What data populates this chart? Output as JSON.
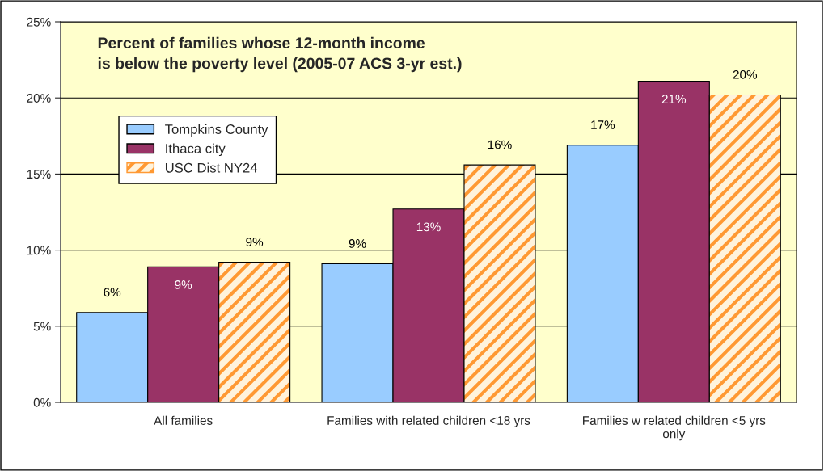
{
  "chart_data": {
    "type": "bar",
    "title": "Percent of families whose 12-month income\nis below the poverty level (2005-07 ACS 3-yr est.)",
    "categories": [
      "All families",
      "Families with related children <18 yrs",
      "Families w related children <5 yrs\nonly"
    ],
    "series": [
      {
        "name": "Tompkins County",
        "color": "#99ccff",
        "values": [
          5.9,
          9.1,
          16.9
        ],
        "value_labels": [
          "6%",
          "9%",
          "17%"
        ]
      },
      {
        "name": "Ithaca city",
        "color": "#993366",
        "values": [
          8.9,
          12.7,
          21.1
        ],
        "value_labels": [
          "9%",
          "13%",
          "21%"
        ]
      },
      {
        "name": "USC Dist NY24",
        "color": "#ff9933",
        "values": [
          9.2,
          15.6,
          20.2
        ],
        "value_labels": [
          "9%",
          "16%",
          "20%"
        ]
      }
    ],
    "ylim": [
      0,
      25
    ],
    "yticks": [
      {
        "value": 0,
        "label": "0%"
      },
      {
        "value": 5,
        "label": "5%"
      },
      {
        "value": 10,
        "label": "10%"
      },
      {
        "value": 15,
        "label": "15%"
      },
      {
        "value": 20,
        "label": "20%"
      },
      {
        "value": 25,
        "label": "25%"
      }
    ],
    "grid": "y",
    "legend": "top left"
  }
}
